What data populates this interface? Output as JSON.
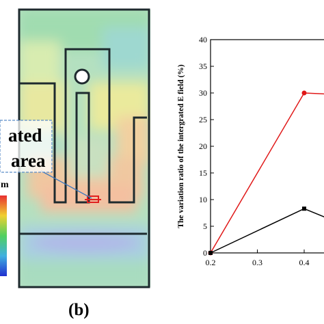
{
  "left_panel": {
    "callout_line1": "ated",
    "callout_line2": "area",
    "colorbar_label": "m",
    "panel_label": "(b)",
    "colors": {
      "field_green": "#a6dcb7",
      "field_yellow": "#ecec9a",
      "field_orange": "#f4c4a0",
      "field_blue": "#a8c8e6",
      "outline": "#1e2a2e",
      "marker": "#e02020",
      "callout_border": "#5a8cc8"
    }
  },
  "chart_data": {
    "type": "line",
    "title": "",
    "xlabel": "",
    "ylabel": "The variation ratio of the intergrated E field (%)",
    "xlim": [
      0.2,
      0.45
    ],
    "ylim": [
      0,
      40
    ],
    "x_ticks": [
      "0.2",
      "0.3",
      "0.4"
    ],
    "y_ticks": [
      "0",
      "5",
      "10",
      "15",
      "20",
      "25",
      "30",
      "35",
      "40"
    ],
    "series": [
      {
        "color": "#e01818",
        "marker": "circle",
        "points": [
          [
            0.2,
            0
          ],
          [
            0.4,
            30
          ],
          [
            0.45,
            29.8
          ]
        ]
      },
      {
        "color": "#000000",
        "marker": "square",
        "points": [
          [
            0.2,
            0
          ],
          [
            0.4,
            8.3
          ],
          [
            0.45,
            6.5
          ]
        ]
      }
    ]
  }
}
